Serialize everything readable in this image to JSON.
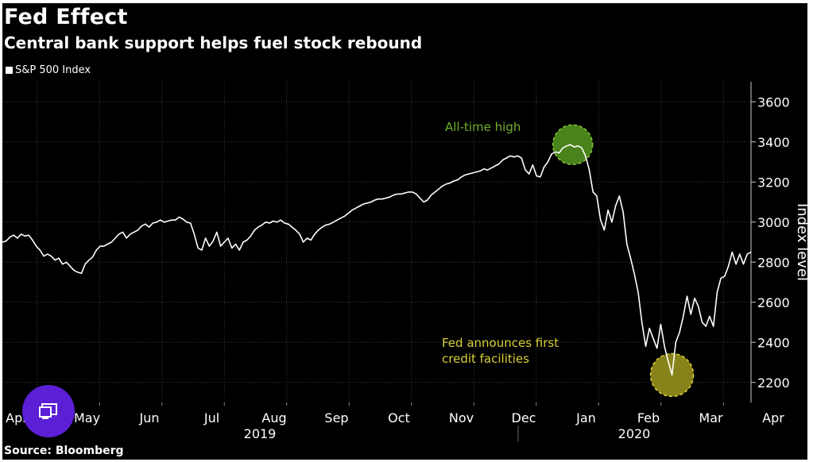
{
  "page": {
    "title": "Fed Effect",
    "subtitle": "Central bank support helps fuel stock rebound",
    "source": "Source: Bloomberg",
    "colors": {
      "background": "#000000",
      "line": "#ffffff",
      "grid": "#3a3a3a",
      "ath_circle": "#4e8a1e",
      "ath_text": "#6fb12a",
      "fed_circle": "#8f8a1c",
      "fed_text": "#d6cf38",
      "fab": "#5b1fd6"
    }
  },
  "overlay": {
    "icon": "cast-screen-icon"
  },
  "chart_data": {
    "type": "line",
    "title": "Fed Effect",
    "subtitle": "Central bank support helps fuel stock rebound",
    "legend": [
      "S&P 500 Index"
    ],
    "legend_position": "top-left",
    "ylabel": "Index level",
    "ylim": [
      2100,
      3700
    ],
    "yticks": [
      2200,
      2400,
      2600,
      2800,
      3000,
      3200,
      3400,
      3600
    ],
    "grid": true,
    "x_month_labels": [
      "Apr",
      "May",
      "Jun",
      "Jul",
      "Aug",
      "Sep",
      "Oct",
      "Nov",
      "Dec",
      "Jan",
      "Feb",
      "Mar",
      "Apr"
    ],
    "x_year_labels": [
      "2019",
      "2020"
    ],
    "series": [
      {
        "name": "S&P 500 Index",
        "points": [
          [
            0.0,
            2900
          ],
          [
            0.05,
            2905
          ],
          [
            0.1,
            2925
          ],
          [
            0.15,
            2935
          ],
          [
            0.2,
            2920
          ],
          [
            0.25,
            2940
          ],
          [
            0.3,
            2930
          ],
          [
            0.35,
            2935
          ],
          [
            0.4,
            2910
          ],
          [
            0.45,
            2880
          ],
          [
            0.5,
            2860
          ],
          [
            0.55,
            2830
          ],
          [
            0.6,
            2840
          ],
          [
            0.65,
            2830
          ],
          [
            0.7,
            2810
          ],
          [
            0.75,
            2820
          ],
          [
            0.8,
            2790
          ],
          [
            0.85,
            2800
          ],
          [
            0.9,
            2780
          ],
          [
            0.95,
            2760
          ],
          [
            1.0,
            2750
          ],
          [
            1.05,
            2744
          ],
          [
            1.1,
            2790
          ],
          [
            1.15,
            2810
          ],
          [
            1.2,
            2826
          ],
          [
            1.25,
            2860
          ],
          [
            1.3,
            2880
          ],
          [
            1.35,
            2880
          ],
          [
            1.4,
            2890
          ],
          [
            1.45,
            2900
          ],
          [
            1.5,
            2920
          ],
          [
            1.55,
            2940
          ],
          [
            1.6,
            2950
          ],
          [
            1.65,
            2920
          ],
          [
            1.7,
            2940
          ],
          [
            1.75,
            2950
          ],
          [
            1.8,
            2960
          ],
          [
            1.85,
            2980
          ],
          [
            1.9,
            2990
          ],
          [
            1.95,
            2975
          ],
          [
            2.0,
            2995
          ],
          [
            2.05,
            3000
          ],
          [
            2.1,
            3010
          ],
          [
            2.15,
            3000
          ],
          [
            2.2,
            3005
          ],
          [
            2.25,
            3010
          ],
          [
            2.3,
            3010
          ],
          [
            2.35,
            3025
          ],
          [
            2.4,
            3015
          ],
          [
            2.45,
            3000
          ],
          [
            2.5,
            2995
          ],
          [
            2.55,
            2940
          ],
          [
            2.6,
            2870
          ],
          [
            2.65,
            2860
          ],
          [
            2.7,
            2920
          ],
          [
            2.75,
            2880
          ],
          [
            2.8,
            2905
          ],
          [
            2.85,
            2950
          ],
          [
            2.9,
            2880
          ],
          [
            2.95,
            2900
          ],
          [
            3.0,
            2920
          ],
          [
            3.05,
            2870
          ],
          [
            3.1,
            2890
          ],
          [
            3.15,
            2860
          ],
          [
            3.2,
            2900
          ],
          [
            3.25,
            2910
          ],
          [
            3.3,
            2930
          ],
          [
            3.35,
            2960
          ],
          [
            3.4,
            2975
          ],
          [
            3.45,
            2985
          ],
          [
            3.5,
            3000
          ],
          [
            3.55,
            2995
          ],
          [
            3.6,
            3005
          ],
          [
            3.65,
            3000
          ],
          [
            3.7,
            3010
          ],
          [
            3.75,
            2995
          ],
          [
            3.8,
            2990
          ],
          [
            3.85,
            2975
          ],
          [
            3.9,
            2960
          ],
          [
            3.95,
            2940
          ],
          [
            4.0,
            2900
          ],
          [
            4.05,
            2920
          ],
          [
            4.1,
            2910
          ],
          [
            4.15,
            2940
          ],
          [
            4.2,
            2960
          ],
          [
            4.25,
            2975
          ],
          [
            4.3,
            2985
          ],
          [
            4.35,
            2990
          ],
          [
            4.4,
            3000
          ],
          [
            4.45,
            3010
          ],
          [
            4.5,
            3020
          ],
          [
            4.55,
            3030
          ],
          [
            4.6,
            3045
          ],
          [
            4.65,
            3060
          ],
          [
            4.7,
            3070
          ],
          [
            4.75,
            3080
          ],
          [
            4.8,
            3090
          ],
          [
            4.85,
            3095
          ],
          [
            4.9,
            3100
          ],
          [
            4.95,
            3110
          ],
          [
            5.0,
            3115
          ],
          [
            5.05,
            3115
          ],
          [
            5.1,
            3120
          ],
          [
            5.15,
            3125
          ],
          [
            5.2,
            3135
          ],
          [
            5.25,
            3140
          ],
          [
            5.3,
            3140
          ],
          [
            5.35,
            3145
          ],
          [
            5.4,
            3150
          ],
          [
            5.45,
            3150
          ],
          [
            5.5,
            3140
          ],
          [
            5.55,
            3120
          ],
          [
            5.6,
            3100
          ],
          [
            5.65,
            3110
          ],
          [
            5.7,
            3135
          ],
          [
            5.75,
            3150
          ],
          [
            5.8,
            3165
          ],
          [
            5.85,
            3180
          ],
          [
            5.9,
            3190
          ],
          [
            5.95,
            3195
          ],
          [
            6.0,
            3205
          ],
          [
            6.05,
            3210
          ],
          [
            6.1,
            3225
          ],
          [
            6.15,
            3235
          ],
          [
            6.2,
            3240
          ],
          [
            6.25,
            3245
          ],
          [
            6.3,
            3250
          ],
          [
            6.35,
            3255
          ],
          [
            6.4,
            3265
          ],
          [
            6.45,
            3260
          ],
          [
            6.5,
            3270
          ],
          [
            6.55,
            3280
          ],
          [
            6.6,
            3290
          ],
          [
            6.65,
            3310
          ],
          [
            6.7,
            3320
          ],
          [
            6.75,
            3330
          ],
          [
            6.8,
            3325
          ],
          [
            6.85,
            3330
          ],
          [
            6.9,
            3320
          ],
          [
            6.95,
            3260
          ],
          [
            7.0,
            3240
          ],
          [
            7.05,
            3285
          ],
          [
            7.1,
            3230
          ],
          [
            7.15,
            3225
          ],
          [
            7.2,
            3275
          ],
          [
            7.25,
            3300
          ],
          [
            7.3,
            3340
          ],
          [
            7.35,
            3350
          ],
          [
            7.4,
            3345
          ],
          [
            7.45,
            3370
          ],
          [
            7.5,
            3380
          ],
          [
            7.55,
            3386
          ],
          [
            7.6,
            3375
          ],
          [
            7.65,
            3380
          ],
          [
            7.7,
            3370
          ],
          [
            7.75,
            3330
          ],
          [
            7.8,
            3260
          ],
          [
            7.85,
            3150
          ],
          [
            7.9,
            3130
          ],
          [
            7.95,
            3010
          ],
          [
            8.0,
            2960
          ],
          [
            8.05,
            3060
          ],
          [
            8.1,
            3000
          ],
          [
            8.15,
            3080
          ],
          [
            8.2,
            3130
          ],
          [
            8.25,
            3050
          ],
          [
            8.3,
            2890
          ],
          [
            8.35,
            2820
          ],
          [
            8.4,
            2740
          ],
          [
            8.45,
            2650
          ],
          [
            8.5,
            2500
          ],
          [
            8.55,
            2380
          ],
          [
            8.6,
            2470
          ],
          [
            8.65,
            2420
          ],
          [
            8.7,
            2370
          ],
          [
            8.75,
            2490
          ],
          [
            8.8,
            2380
          ],
          [
            8.85,
            2304
          ],
          [
            8.9,
            2237
          ],
          [
            8.95,
            2400
          ],
          [
            9.0,
            2450
          ],
          [
            9.05,
            2530
          ],
          [
            9.1,
            2630
          ],
          [
            9.15,
            2540
          ],
          [
            9.2,
            2620
          ],
          [
            9.25,
            2580
          ],
          [
            9.3,
            2500
          ],
          [
            9.35,
            2480
          ],
          [
            9.4,
            2530
          ],
          [
            9.45,
            2480
          ],
          [
            9.5,
            2650
          ],
          [
            9.55,
            2720
          ],
          [
            9.6,
            2730
          ],
          [
            9.65,
            2780
          ],
          [
            9.7,
            2850
          ],
          [
            9.75,
            2790
          ],
          [
            9.8,
            2840
          ],
          [
            9.85,
            2790
          ],
          [
            9.9,
            2840
          ],
          [
            9.95,
            2850
          ]
        ]
      }
    ],
    "annotations": [
      {
        "text": "All-time high",
        "x": 7.58,
        "y": 3386,
        "label_lines": [
          "All-time high"
        ]
      },
      {
        "text": "Fed announces first credit facilities",
        "x": 8.9,
        "y": 2237,
        "label_lines": [
          "Fed announces first",
          "credit facilities"
        ]
      }
    ]
  }
}
